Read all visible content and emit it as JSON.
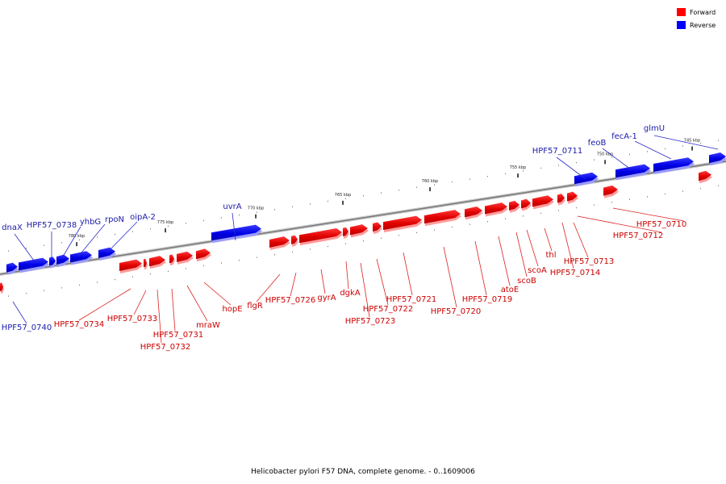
{
  "caption": "Helicobacter pylori F57 DNA, complete genome. - 0..1609006",
  "legend": [
    {
      "label": "Forward",
      "color": "#ff0000"
    },
    {
      "label": "Reverse",
      "color": "#0000ff"
    }
  ],
  "colors": {
    "forward": "#f01010",
    "forward_label": "#cc0000",
    "reverse": "#1515f5",
    "reverse_label": "#1a1aaa",
    "backbone": "#888888"
  },
  "ticks": [
    "780 kbp",
    "775 kbp",
    "770 kbp",
    "765 kbp",
    "760 kbp",
    "755 kbp",
    "750 kbp",
    "745 kbp"
  ],
  "reverse_genes": [
    "dnaX",
    "HPF57_0738",
    "yhbG",
    "rpoN",
    "oipA-2",
    "uvrA",
    "HPF57_0711",
    "feoB",
    "fecA-1",
    "glmU",
    "HPF57_0740"
  ],
  "forward_genes": [
    "HPF57_0734",
    "HPF57_0733",
    "HPF57_0732",
    "HPF57_0731",
    "mraW",
    "hopE",
    "flgR",
    "HPF57_0726",
    "gyrA",
    "dgkA",
    "HPF57_0723",
    "HPF57_0722",
    "HPF57_0721",
    "HPF57_0720",
    "HPF57_0719",
    "atoE",
    "scoB",
    "scoA",
    "thl",
    "HPF57_0714",
    "HPF57_0713",
    "HPF57_0712",
    "HPF57_0710"
  ]
}
